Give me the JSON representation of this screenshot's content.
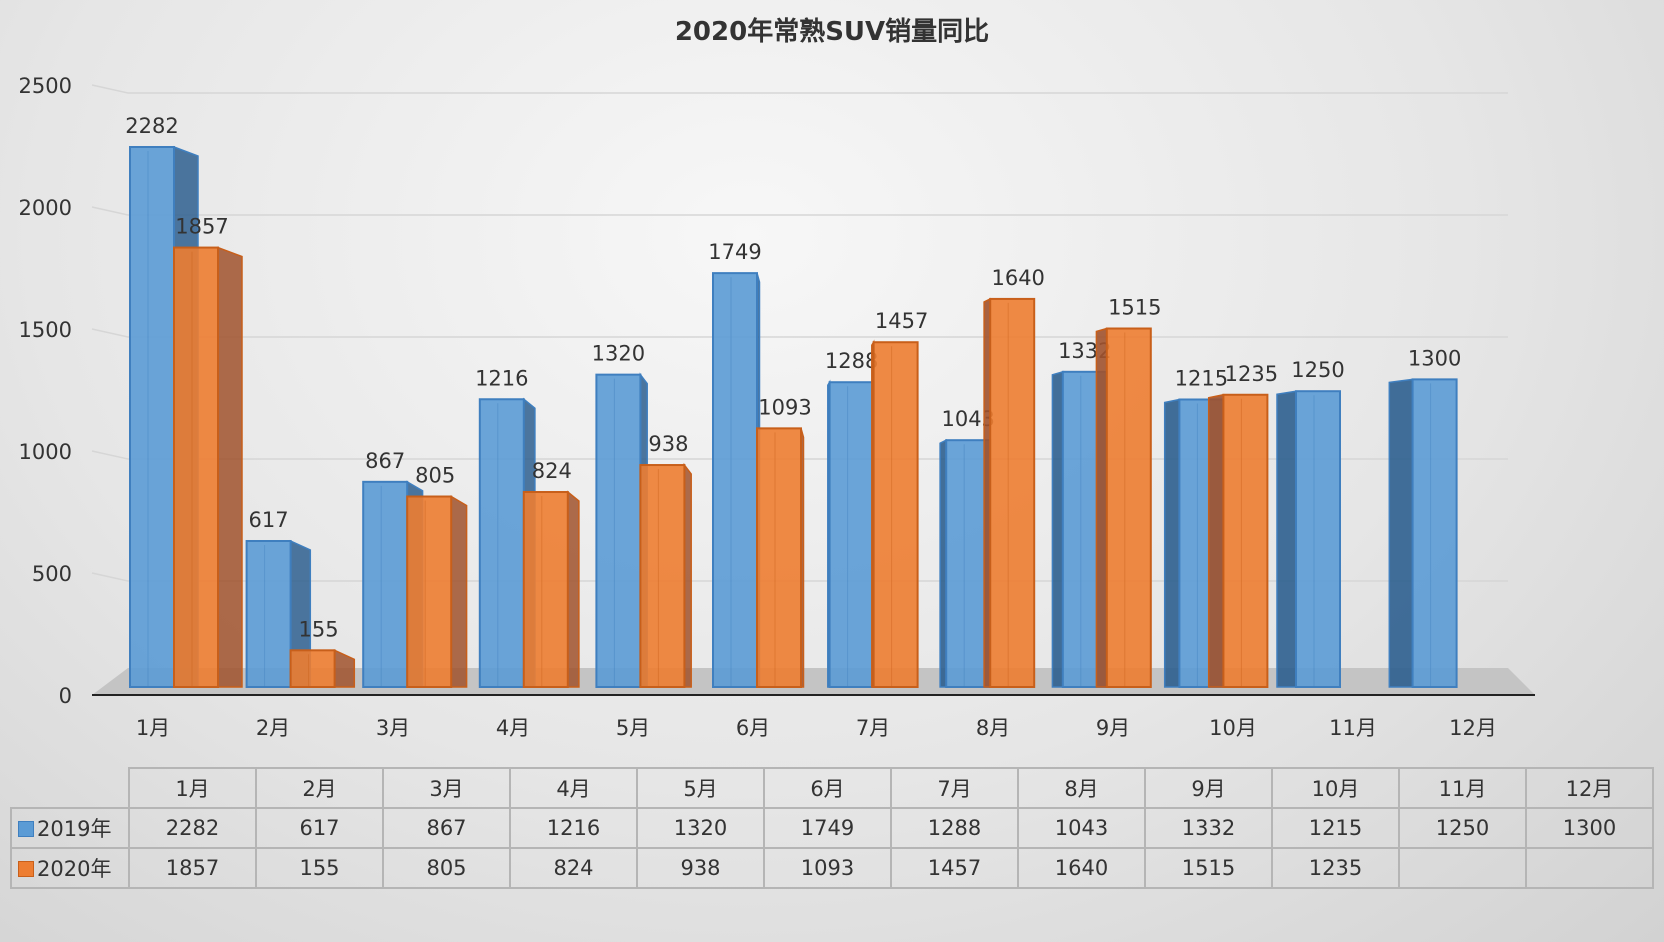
{
  "chart_data": {
    "type": "bar",
    "title": "2020年常熟SUV销量同比",
    "categories": [
      "1月",
      "2月",
      "3月",
      "4月",
      "5月",
      "6月",
      "7月",
      "8月",
      "9月",
      "10月",
      "11月",
      "12月"
    ],
    "series": [
      {
        "name": "2019年",
        "color": "#5b9bd5",
        "values": [
          2282,
          617,
          867,
          1216,
          1320,
          1749,
          1288,
          1043,
          1332,
          1215,
          1250,
          1300
        ]
      },
      {
        "name": "2020年",
        "color": "#ed7d31",
        "values": [
          1857,
          155,
          805,
          824,
          938,
          1093,
          1457,
          1640,
          1515,
          1235,
          null,
          null
        ]
      }
    ],
    "yticks": [
      0,
      500,
      1000,
      1500,
      2000,
      2500
    ],
    "ylim": [
      0,
      2500
    ],
    "xlabel": "",
    "ylabel": "",
    "grid": true,
    "legend": "data-table-bottom"
  }
}
